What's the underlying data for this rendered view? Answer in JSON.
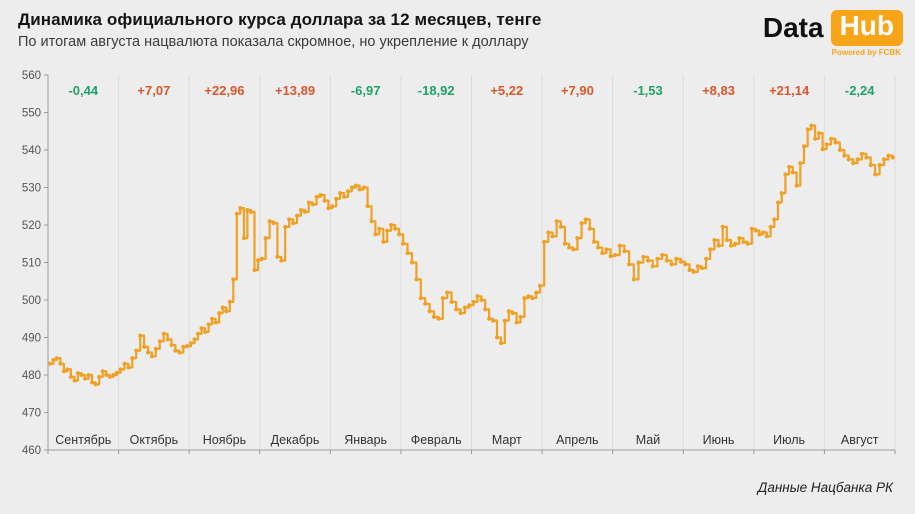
{
  "header": {
    "title": "Динамика официального курса доллара за 12 месяцев, тенге",
    "subtitle": "По итогам августа нацвалюта показала скромное, но укрепление к доллару",
    "logo": {
      "part1": "Data",
      "part2": "Hub",
      "tagline": "Powered by FCBK",
      "accent_color": "#f9a51a"
    }
  },
  "footer": {
    "attribution": "Данные Нацбанка РК"
  },
  "chart_data": {
    "type": "line",
    "subtype": "step",
    "title": "Динамика официального курса доллара за 12 месяцев, тенге",
    "xlabel": "",
    "ylabel": "",
    "ylim": [
      460,
      560
    ],
    "y_ticks": [
      560,
      550,
      540,
      530,
      520,
      510,
      500,
      490,
      480,
      470,
      460
    ],
    "grid": "vertical-month-boundaries",
    "legend": "none",
    "line_color": "#f0a125",
    "marker_color": "#f0a125",
    "positive_change_color": "#d9572b",
    "negative_change_color": "#1fa266",
    "grid_color": "#dcdcdc",
    "axis_color": "#9a9a9a",
    "tick_label_color": "#555555",
    "month_label_color": "#333333",
    "months": [
      {
        "label": "Сентябрь",
        "change": "-0,44",
        "direction": "down",
        "values": [
          483,
          484,
          484.5,
          483,
          481,
          481.5,
          479.5,
          478.5,
          480.5,
          480,
          479,
          480,
          478,
          477.5,
          479.5,
          481,
          480,
          479.5,
          480,
          480.6
        ]
      },
      {
        "label": "Октябрь",
        "change": "+7,07",
        "direction": "up",
        "values": [
          481.5,
          483,
          482,
          484.5,
          486.5,
          490.5,
          487.5,
          486,
          485,
          487,
          489,
          491,
          489.5,
          488,
          486.5,
          486,
          487.5,
          487.7
        ]
      },
      {
        "label": "Ноябрь",
        "change": "+22,96",
        "direction": "up",
        "values": [
          488.5,
          489.5,
          491,
          492.5,
          491.5,
          493.5,
          495,
          494,
          496.5,
          498,
          497,
          499.5,
          505.5,
          523,
          524.5,
          516.5,
          524,
          523.5,
          508,
          510.6
        ]
      },
      {
        "label": "Декабрь",
        "change": "+13,89",
        "direction": "up",
        "values": [
          511,
          516.5,
          521,
          520.5,
          511.5,
          510.5,
          519.5,
          521.5,
          520.5,
          522.5,
          524,
          523.5,
          526,
          525.5,
          527.5,
          528,
          526.5,
          524.5
        ]
      },
      {
        "label": "Январь",
        "change": "-6,97",
        "direction": "down",
        "values": [
          525,
          527,
          528.5,
          527.5,
          529,
          530,
          530.5,
          529.5,
          530,
          525,
          521,
          517.5,
          519,
          515.5,
          518.5,
          520,
          519,
          517.5
        ]
      },
      {
        "label": "Февраль",
        "change": "-18,92",
        "direction": "down",
        "values": [
          515,
          512.5,
          510,
          505.5,
          500.5,
          499,
          497,
          495.5,
          495,
          500.5,
          502,
          499.5,
          497.5,
          496.5,
          498,
          498.6
        ]
      },
      {
        "label": "Март",
        "change": "+5,22",
        "direction": "up",
        "values": [
          499.5,
          501,
          500,
          497.5,
          495,
          494.5,
          490,
          488.5,
          494.5,
          497,
          496.5,
          494,
          495.5,
          500.5,
          501,
          500.5,
          502,
          503.8
        ]
      },
      {
        "label": "Апрель",
        "change": "+7,90",
        "direction": "up",
        "values": [
          515.5,
          518,
          517,
          521,
          519.5,
          515,
          514,
          513.5,
          516.5,
          520.5,
          521.5,
          519,
          515.5,
          514,
          512.5,
          513.5,
          511.7
        ]
      },
      {
        "label": "Май",
        "change": "-1,53",
        "direction": "down",
        "values": [
          512,
          514.5,
          513,
          509.5,
          505.5,
          510,
          511.5,
          510.5,
          509,
          511,
          512,
          510.5,
          509.5,
          511,
          510.2
        ]
      },
      {
        "label": "Июнь",
        "change": "+8,83",
        "direction": "up",
        "values": [
          509.5,
          508,
          507.5,
          509,
          508.5,
          511,
          513.5,
          516,
          514.5,
          519.5,
          516,
          514.5,
          515,
          516.5,
          515.5,
          515,
          519
        ]
      },
      {
        "label": "Июль",
        "change": "+21,14",
        "direction": "up",
        "values": [
          518.5,
          517.5,
          518,
          517,
          519.5,
          521.5,
          526,
          528.5,
          533.5,
          535.5,
          534,
          530.5,
          536.5,
          541,
          545.5,
          546.5,
          543,
          544.5,
          540.2
        ]
      },
      {
        "label": "Август",
        "change": "-2,24",
        "direction": "down",
        "values": [
          541.5,
          543,
          542,
          540,
          538.5,
          537.5,
          536.5,
          537.5,
          539,
          538,
          536,
          533.5,
          536,
          537.5,
          538.5,
          538
        ]
      }
    ]
  }
}
